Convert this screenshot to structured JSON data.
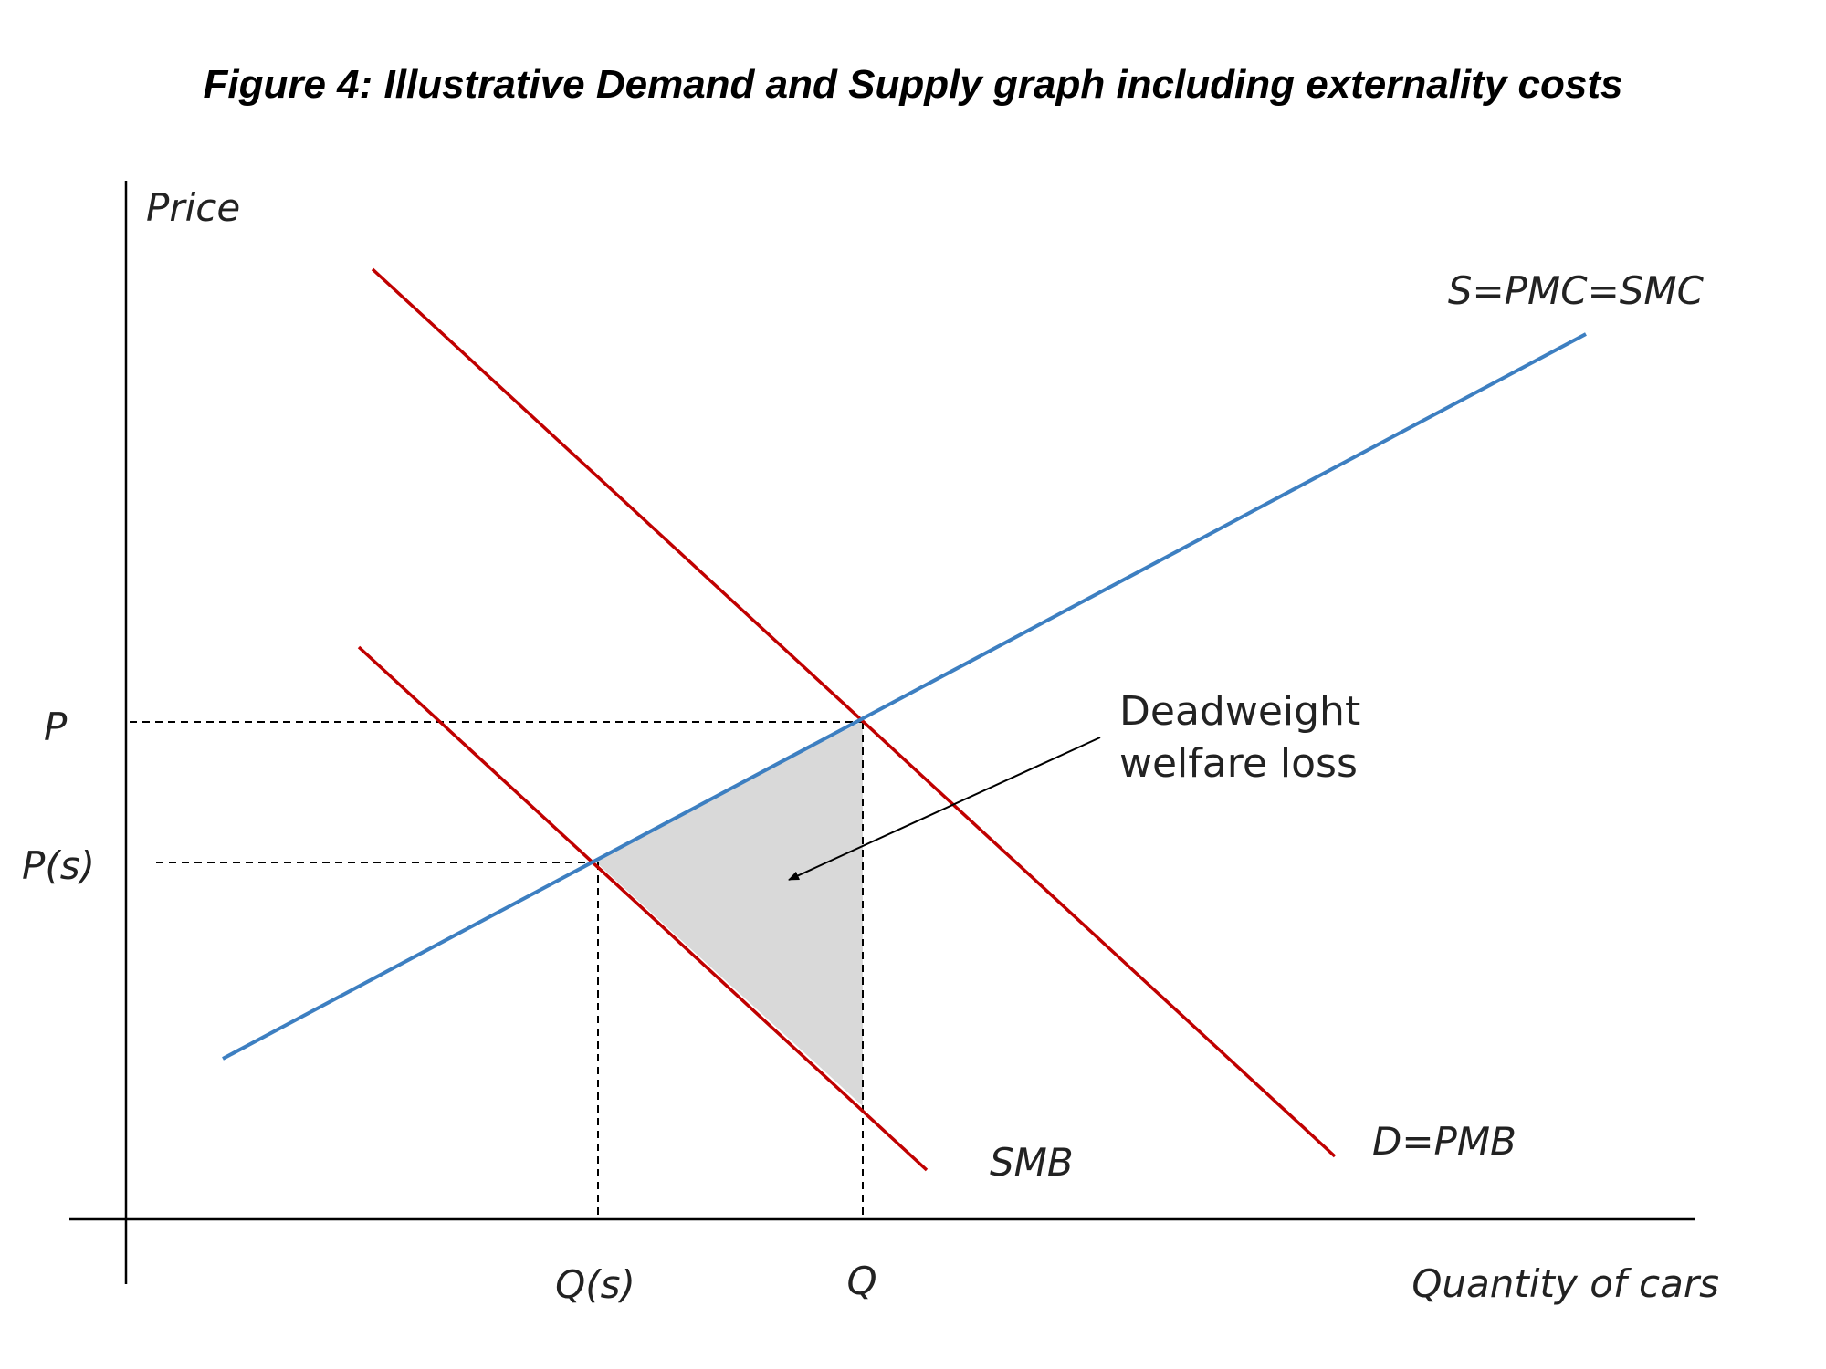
{
  "title": "Figure 4: Illustrative Demand and Supply graph including externality costs",
  "axes": {
    "y_label": "Price",
    "x_label": "Quantity of cars"
  },
  "curves": {
    "supply": "S=PMC=SMC",
    "demand": "D=PMB",
    "smb": "SMB"
  },
  "points": {
    "p": "P",
    "ps": "P(s)",
    "q": "Q",
    "qs": "Q(s)"
  },
  "annotation": {
    "line1": "Deadweight",
    "line2": "welfare loss"
  },
  "colors": {
    "supply": "#3d7fc1",
    "demand": "#c00000",
    "smb": "#c00000",
    "dwl_fill": "#d9d9d9"
  }
}
